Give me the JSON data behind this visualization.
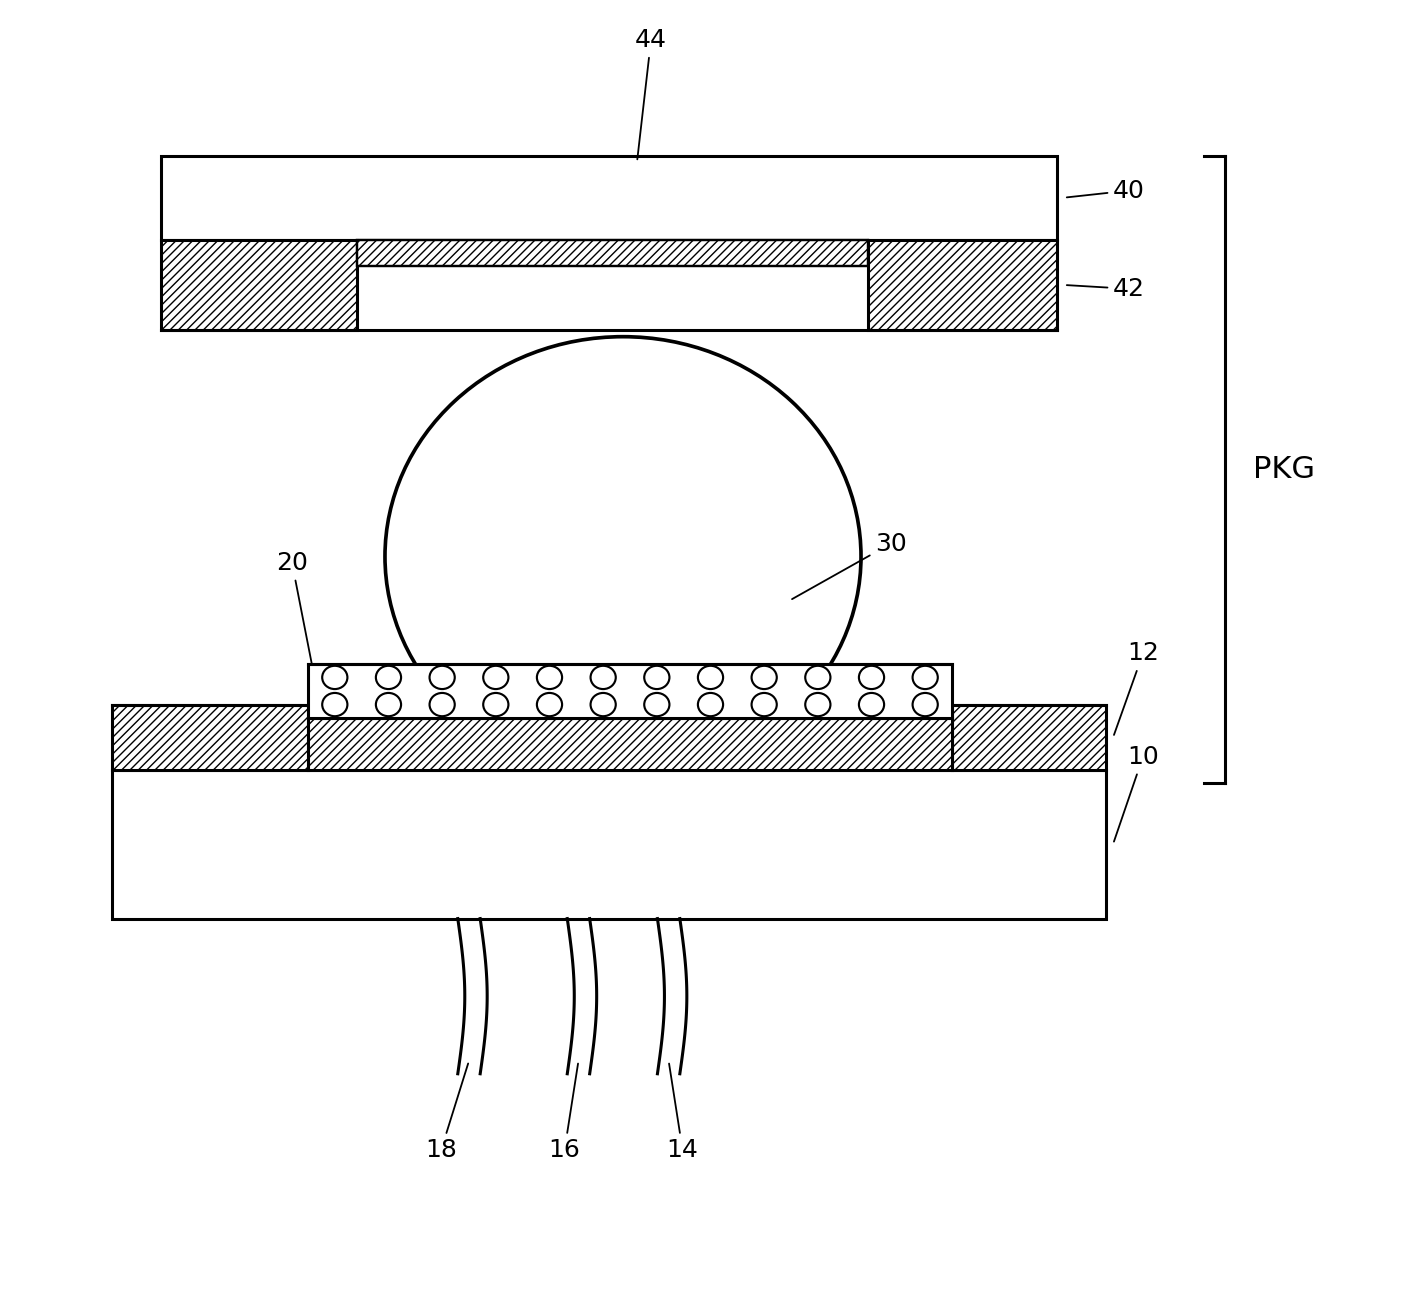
{
  "bg_color": "#ffffff",
  "line_color": "#000000",
  "lw": 2.2,
  "fig_width": 14.14,
  "fig_height": 13.07
}
